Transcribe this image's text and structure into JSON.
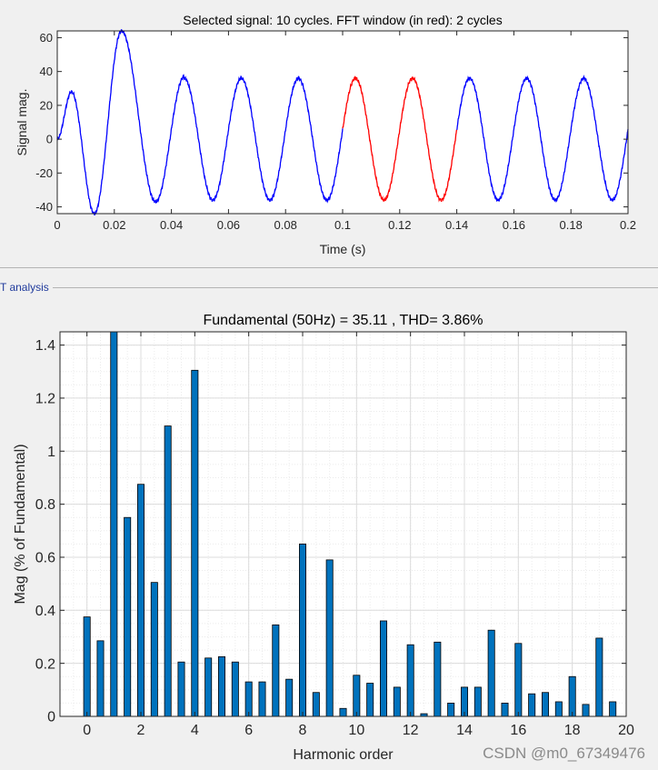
{
  "panel": {
    "title": "T analysis"
  },
  "watermark": "CSDN @m0_67349476",
  "chart_data": [
    {
      "type": "line",
      "title": "Selected signal: 10 cycles. FFT window (in red): 2 cycles",
      "xlabel": "Time (s)",
      "ylabel": "Signal mag.",
      "xlim": [
        0,
        0.2
      ],
      "ylim": [
        -44,
        64
      ],
      "xticks": [
        0,
        0.02,
        0.04,
        0.06,
        0.08,
        0.1,
        0.12,
        0.14,
        0.16,
        0.18,
        0.2
      ],
      "xtick_labels": [
        "0",
        "0.02",
        "0.04",
        "0.06",
        "0.08",
        "0.1",
        "0.12",
        "0.14",
        "0.16",
        "0.18",
        "0.2"
      ],
      "yticks": [
        -40,
        -20,
        0,
        20,
        40,
        60
      ],
      "ytick_labels": [
        "-40",
        "-20",
        "0",
        "20",
        "40",
        "60"
      ],
      "grid": false,
      "fundamental_hz": 50,
      "steady_amplitude": 36,
      "fft_window": [
        0.1,
        0.14
      ],
      "series": [
        {
          "name": "Selected signal",
          "color": "#0000ff"
        },
        {
          "name": "FFT window",
          "color": "#ff0000"
        }
      ],
      "transient_keypoints": [
        {
          "t": 0,
          "v": 0
        },
        {
          "t": 0.005,
          "v": 28
        },
        {
          "t": 0.013,
          "v": -44
        },
        {
          "t": 0.0225,
          "v": 64
        },
        {
          "t": 0.0345,
          "v": -37
        },
        {
          "t": 0.0445,
          "v": 37
        }
      ]
    },
    {
      "type": "bar",
      "title": "Fundamental (50Hz) = 35.11 , THD= 3.86%",
      "xlabel": "Harmonic order",
      "ylabel": "Mag (% of Fundamental)",
      "xlim": [
        -1,
        20
      ],
      "ylim": [
        0,
        1.45
      ],
      "xticks": [
        0,
        2,
        4,
        6,
        8,
        10,
        12,
        14,
        16,
        18,
        20
      ],
      "xtick_labels": [
        "0",
        "2",
        "4",
        "6",
        "8",
        "10",
        "12",
        "14",
        "16",
        "18",
        "20"
      ],
      "yticks": [
        0,
        0.2,
        0.4,
        0.6,
        0.8,
        1.0,
        1.2,
        1.4
      ],
      "ytick_labels": [
        "0",
        "0.2",
        "0.4",
        "0.6",
        "0.8",
        "1",
        "1.2",
        "1.4"
      ],
      "grid": true,
      "bar_color": "#0072bd",
      "x": [
        0,
        0.5,
        1,
        1.5,
        2,
        2.5,
        3,
        3.5,
        4,
        4.5,
        5,
        5.5,
        6,
        6.5,
        7,
        7.5,
        8,
        8.5,
        9,
        9.5,
        10,
        10.5,
        11,
        11.5,
        12,
        12.5,
        13,
        13.5,
        14,
        14.5,
        15,
        15.5,
        16,
        16.5,
        17,
        17.5,
        18,
        18.5,
        19,
        19.5
      ],
      "values": [
        0.375,
        0.285,
        1.45,
        0.75,
        0.875,
        0.505,
        1.095,
        0.205,
        1.305,
        0.22,
        0.225,
        0.205,
        0.13,
        0.13,
        0.345,
        0.14,
        0.65,
        0.09,
        0.59,
        0.03,
        0.155,
        0.125,
        0.36,
        0.11,
        0.27,
        0.01,
        0.28,
        0.05,
        0.11,
        0.11,
        0.325,
        0.05,
        0.275,
        0.085,
        0.09,
        0.055,
        0.15,
        0.045,
        0.295,
        0.055
      ]
    }
  ]
}
